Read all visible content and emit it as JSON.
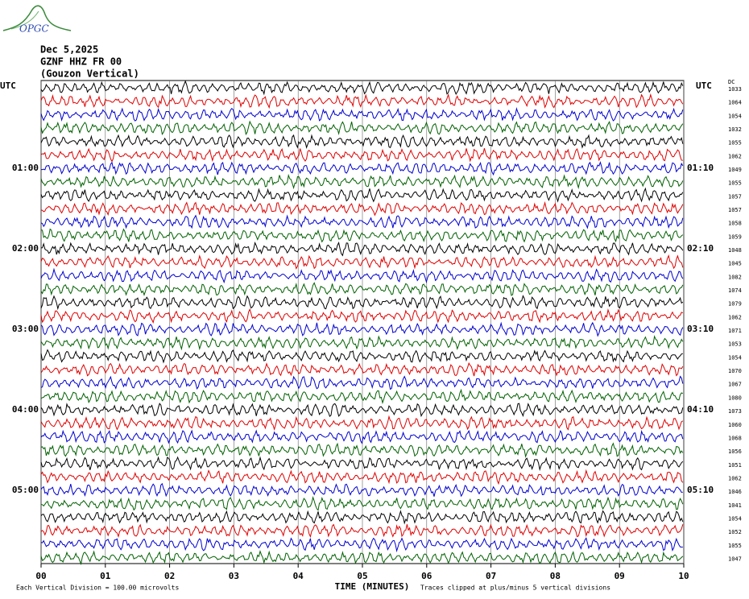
{
  "header": {
    "logo": "OPGC",
    "date": "Dec 5,2025",
    "station": "GZNF HHZ FR 00",
    "location": "(Gouzon Vertical)"
  },
  "left_axis": {
    "title": "UTC",
    "labels": [
      "01:00",
      "02:00",
      "03:00",
      "04:00",
      "05:00"
    ]
  },
  "right_axis": {
    "title": "UTC",
    "dc_title": "DC",
    "labels": [
      "01:10",
      "02:10",
      "03:10",
      "04:10",
      "05:10"
    ]
  },
  "traces": {
    "colors": [
      "#000000",
      "#e00000",
      "#0000d0",
      "#006000"
    ],
    "dc_values": [
      1033,
      1064,
      1054,
      1032,
      1055,
      1062,
      1049,
      1055,
      1057,
      1057,
      1058,
      1059,
      1048,
      1045,
      1082,
      1074,
      1079,
      1062,
      1071,
      1053,
      1054,
      1070,
      1067,
      1080,
      1073,
      1060,
      1068,
      1056,
      1051,
      1062,
      1046,
      1041,
      1054,
      1052,
      1055,
      1047
    ]
  },
  "x_axis": {
    "title": "TIME (MINUTES)",
    "ticks": [
      "00",
      "01",
      "02",
      "03",
      "04",
      "05",
      "06",
      "07",
      "08",
      "09",
      "10"
    ]
  },
  "footer": {
    "scale": "Each Vertical Division =  100.00 microvolts",
    "clip": "Traces clipped at plus/minus 5 vertical divisions"
  }
}
